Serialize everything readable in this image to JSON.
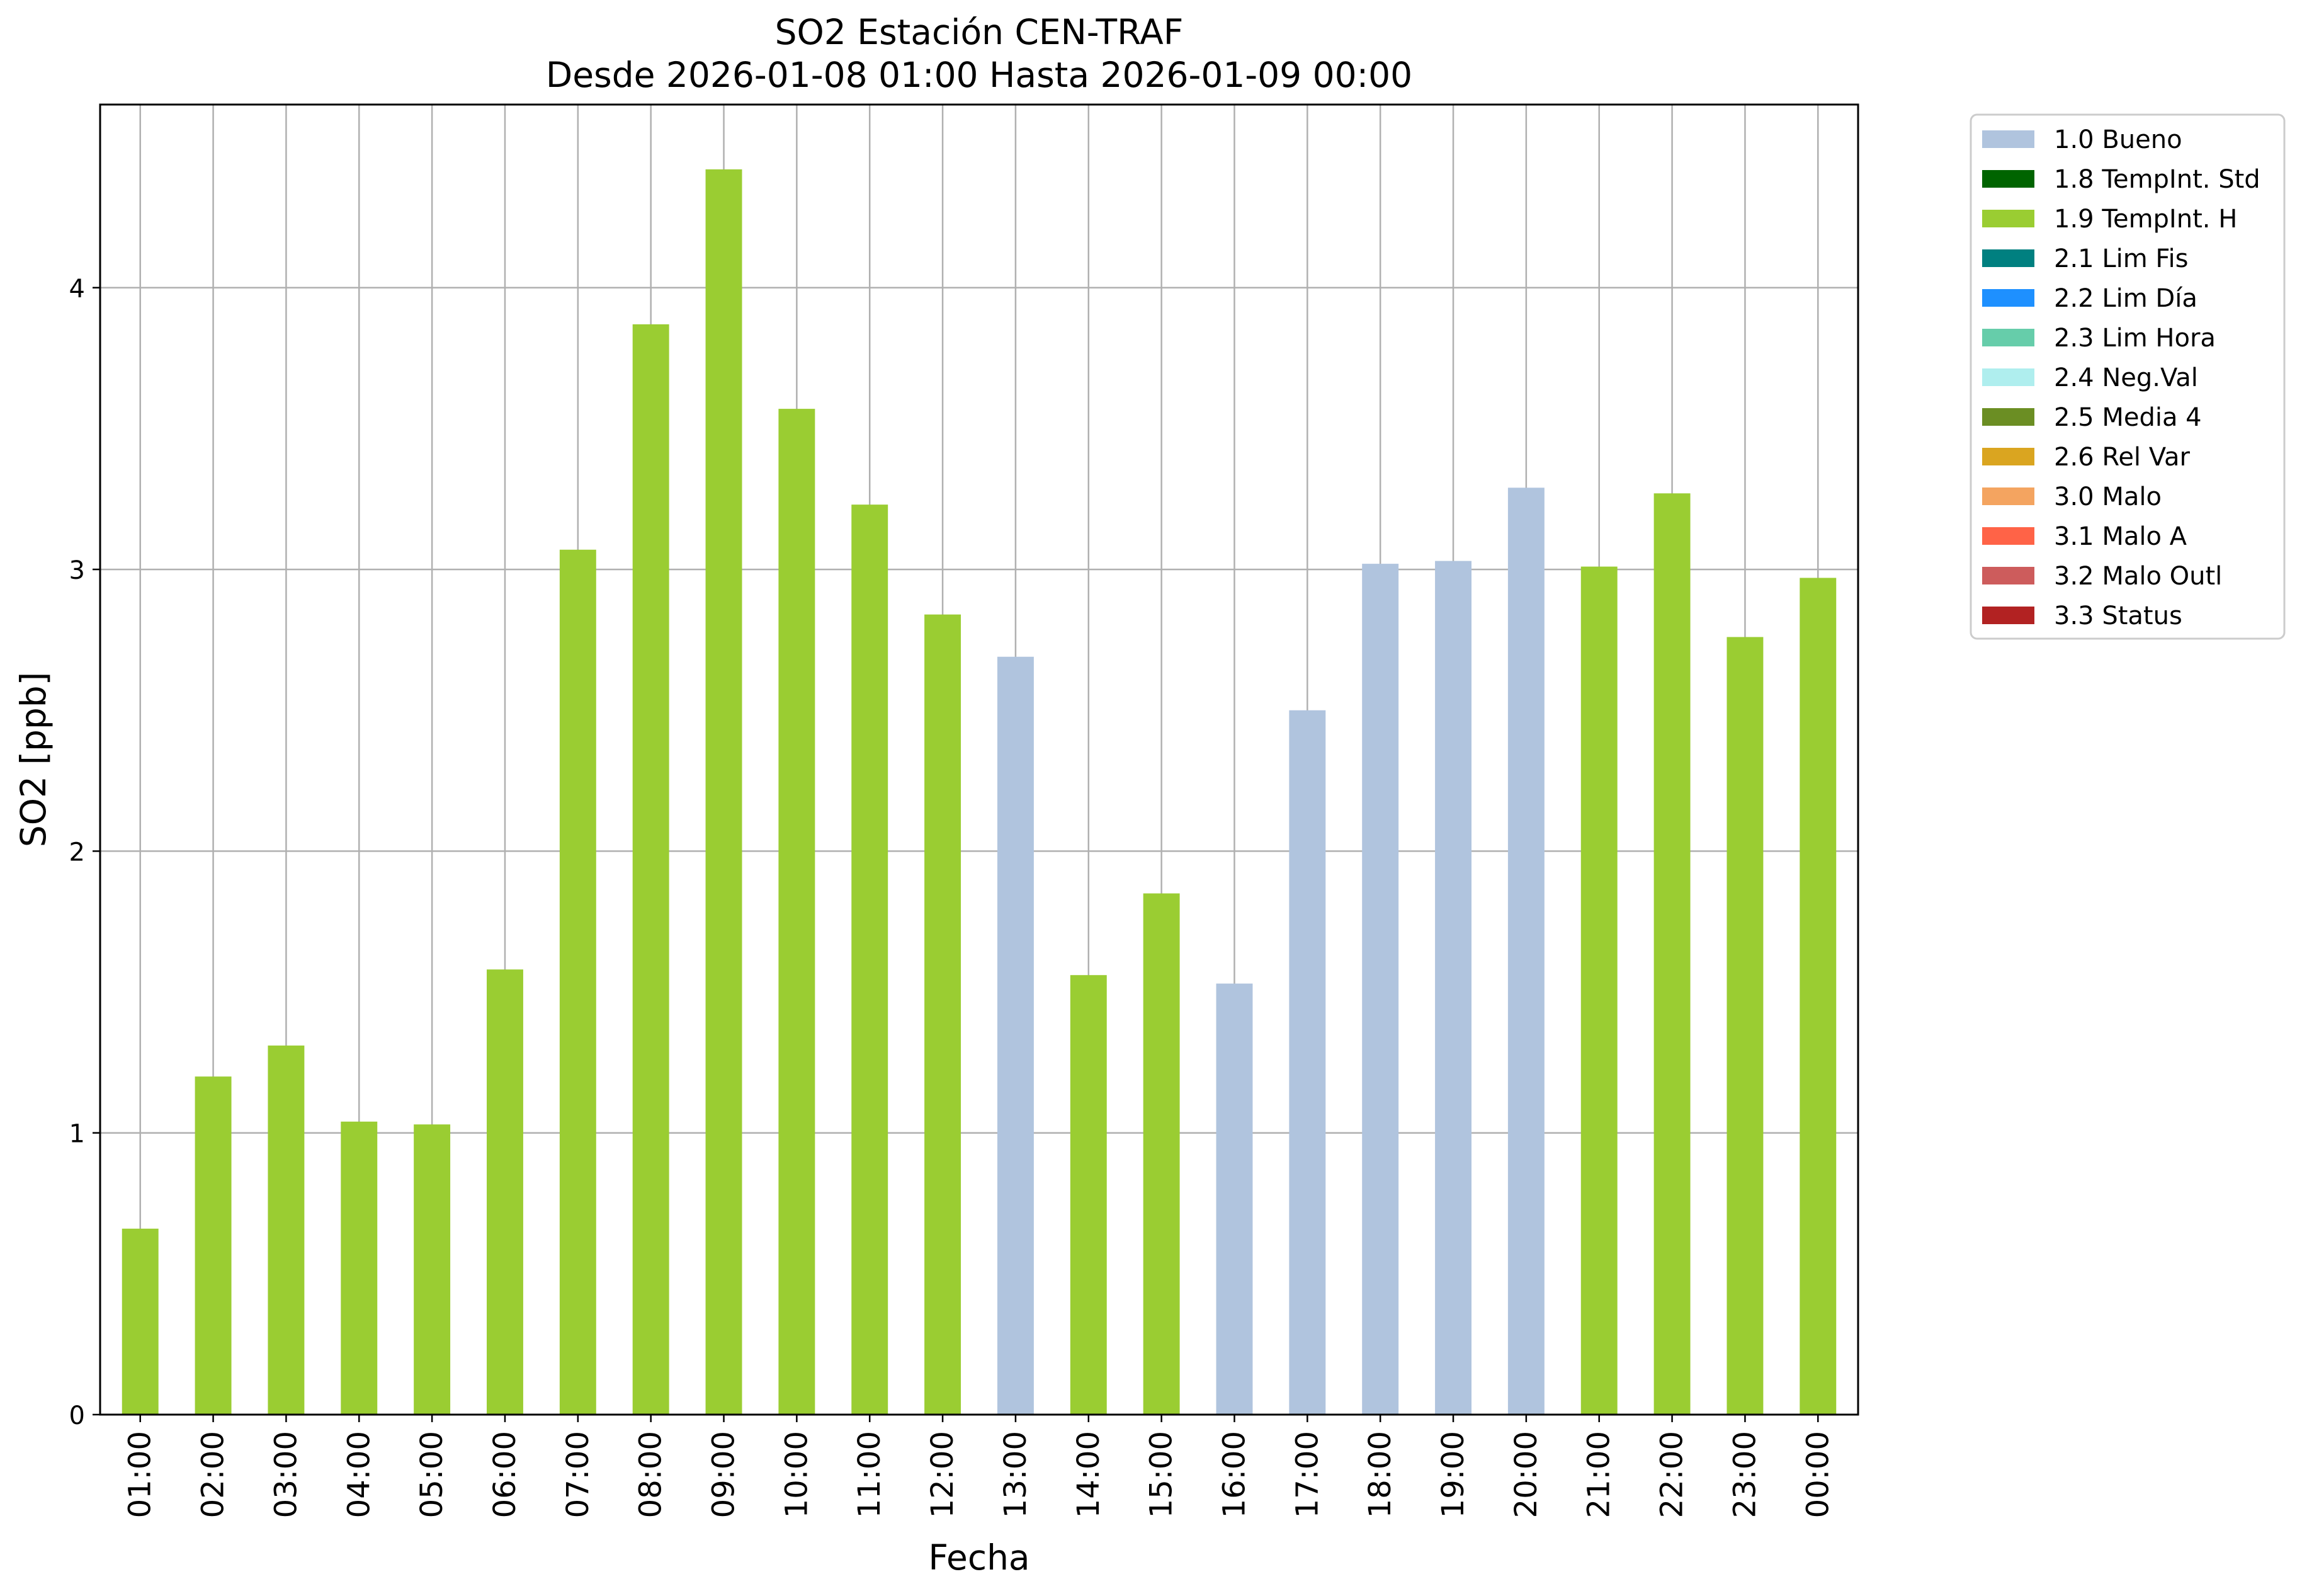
{
  "chart_data": {
    "type": "bar",
    "title": "SO2 Estación CEN-TRAF",
    "subtitle": "Desde 2026-01-08 01:00 Hasta 2026-01-09 00:00",
    "xlabel": "Fecha",
    "ylabel": "SO2 [ppb]",
    "ylim": [
      0,
      4.65
    ],
    "yticks": [
      0,
      1,
      2,
      3,
      4
    ],
    "grid": true,
    "legend_position": "outside-top-right",
    "categories": [
      "01:00",
      "02:00",
      "03:00",
      "04:00",
      "05:00",
      "06:00",
      "07:00",
      "08:00",
      "09:00",
      "10:00",
      "11:00",
      "12:00",
      "13:00",
      "14:00",
      "15:00",
      "16:00",
      "17:00",
      "18:00",
      "19:00",
      "20:00",
      "21:00",
      "22:00",
      "23:00",
      "00:00"
    ],
    "values": [
      0.66,
      1.2,
      1.31,
      1.04,
      1.03,
      1.58,
      3.07,
      3.87,
      4.42,
      3.57,
      3.23,
      2.84,
      2.69,
      1.56,
      1.85,
      1.53,
      2.5,
      3.02,
      3.03,
      3.29,
      3.01,
      3.27,
      2.76,
      2.97
    ],
    "flags": [
      "1.9 TempInt. H",
      "1.9 TempInt. H",
      "1.9 TempInt. H",
      "1.9 TempInt. H",
      "1.9 TempInt. H",
      "1.9 TempInt. H",
      "1.9 TempInt. H",
      "1.9 TempInt. H",
      "1.9 TempInt. H",
      "1.9 TempInt. H",
      "1.9 TempInt. H",
      "1.9 TempInt. H",
      "1.0 Bueno",
      "1.9 TempInt. H",
      "1.9 TempInt. H",
      "1.0 Bueno",
      "1.0 Bueno",
      "1.0 Bueno",
      "1.0 Bueno",
      "1.0 Bueno",
      "1.9 TempInt. H",
      "1.9 TempInt. H",
      "1.9 TempInt. H",
      "1.9 TempInt. H"
    ],
    "legend": [
      {
        "label": "1.0 Bueno",
        "color": "#b0c4de"
      },
      {
        "label": "1.8 TempInt. Std",
        "color": "#006400"
      },
      {
        "label": "1.9 TempInt. H",
        "color": "#9acd32"
      },
      {
        "label": "2.1 Lim Fis",
        "color": "#008080"
      },
      {
        "label": "2.2 Lim Día",
        "color": "#1e90ff"
      },
      {
        "label": "2.3 Lim Hora",
        "color": "#66cdaa"
      },
      {
        "label": "2.4 Neg.Val",
        "color": "#afeeee"
      },
      {
        "label": "2.5 Media 4",
        "color": "#6b8e23"
      },
      {
        "label": "2.6 Rel Var",
        "color": "#daa520"
      },
      {
        "label": "3.0 Malo",
        "color": "#f4a460"
      },
      {
        "label": "3.1 Malo A",
        "color": "#ff6347"
      },
      {
        "label": "3.2 Malo Outl",
        "color": "#cd5c5c"
      },
      {
        "label": "3.3 Status",
        "color": "#b22222"
      }
    ]
  }
}
